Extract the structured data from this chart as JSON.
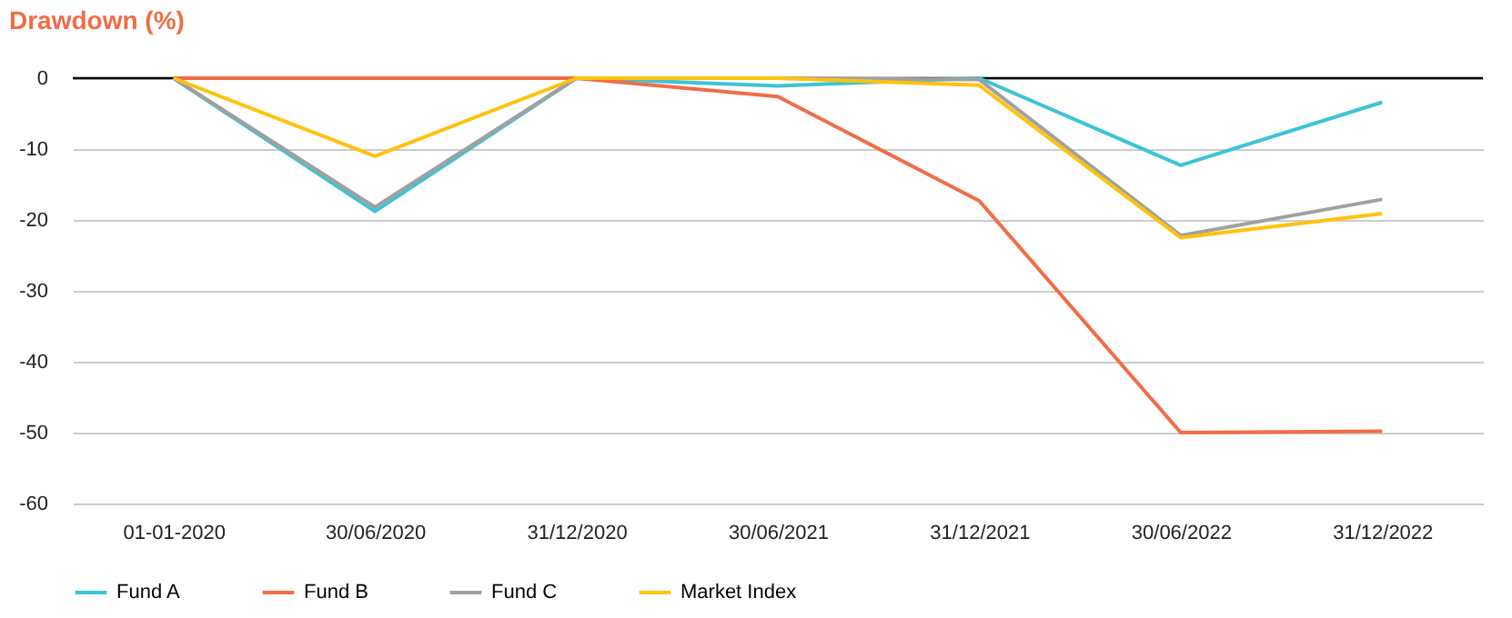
{
  "chart_data": {
    "type": "line",
    "title": "Drawdown (%)",
    "categories": [
      "01-01-2020",
      "30/06/2020",
      "31/12/2020",
      "30/06/2021",
      "31/12/2021",
      "30/06/2022",
      "31/12/2022"
    ],
    "series": [
      {
        "name": "Fund A",
        "color": "#3bc4d6",
        "values": [
          0,
          -18.8,
          0,
          -1.1,
          0,
          -12.3,
          -3.4
        ]
      },
      {
        "name": "Fund B",
        "color": "#f26c45",
        "values": [
          0,
          0,
          0,
          -2.6,
          -17.3,
          -50,
          -49.8
        ]
      },
      {
        "name": "Fund C",
        "color": "#a0a0a0",
        "values": [
          0,
          -18.2,
          0,
          0,
          -0.2,
          -22.2,
          -17.1
        ]
      },
      {
        "name": "Market Index",
        "color": "#ffc20e",
        "values": [
          0,
          -11,
          0,
          0,
          -1,
          -22.5,
          -19.1
        ]
      }
    ],
    "ylim": [
      -60,
      0
    ],
    "yticks": [
      -60,
      -50,
      -40,
      -30,
      -20,
      -10,
      0
    ],
    "grid": "y",
    "legend": "bottom",
    "marker": "none",
    "line_style": "solid",
    "ref_lines": [
      {
        "axis": "y",
        "value": 0,
        "color": "#000000"
      }
    ]
  }
}
